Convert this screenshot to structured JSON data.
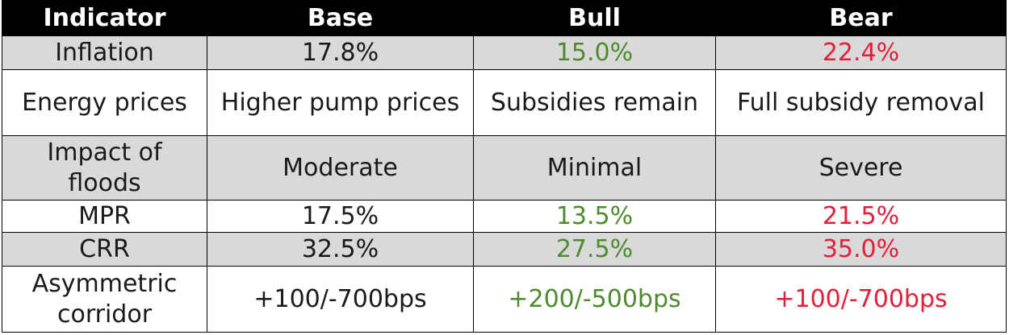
{
  "chart_data": {
    "type": "table",
    "columns": [
      "Indicator",
      "Base",
      "Bull",
      "Bear"
    ],
    "rows": [
      {
        "indicator": "Inflation",
        "base": "17.8%",
        "bull": "15.0%",
        "bear": "22.4%"
      },
      {
        "indicator": "Energy prices",
        "base": "Higher pump prices",
        "bull": "Subsidies remain",
        "bear": "Full subsidy removal"
      },
      {
        "indicator": "Impact of floods",
        "base": "Moderate",
        "bull": "Minimal",
        "bear": "Severe"
      },
      {
        "indicator": "MPR",
        "base": "17.5%",
        "bull": "13.5%",
        "bear": "21.5%"
      },
      {
        "indicator": "CRR",
        "base": "32.5%",
        "bull": "27.5%",
        "bear": "35.0%"
      },
      {
        "indicator": "Asymmetric corridor",
        "base": "+100/-700bps",
        "bull": "+200/-500bps",
        "bear": "+100/-700bps"
      }
    ]
  },
  "colors": {
    "header_bg": "#000000",
    "header_text": "#ffffff",
    "row_shade": "#d9d9d9",
    "row_plain": "#ffffff",
    "bull_text": "#4e8a2e",
    "bear_text": "#e0203a",
    "default_text": "#1a1a1a"
  }
}
